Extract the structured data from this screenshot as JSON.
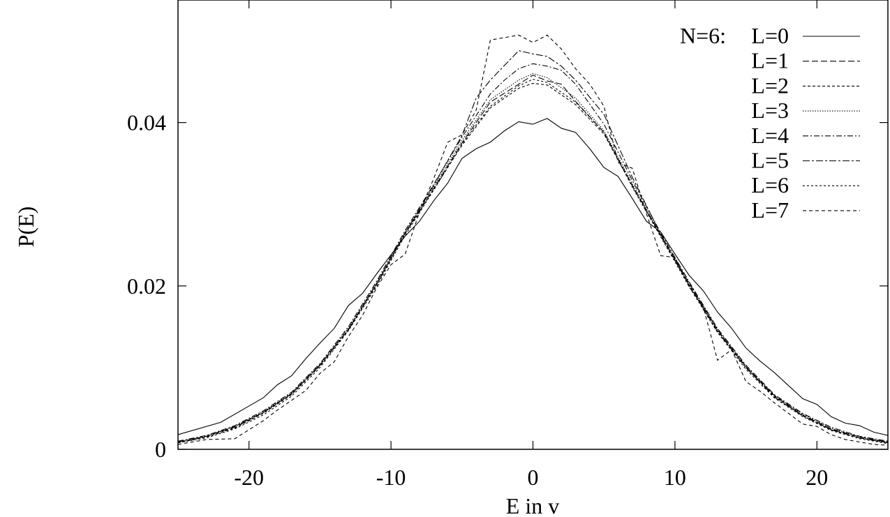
{
  "chart_data": {
    "type": "line",
    "title": "",
    "xlabel": "E in v",
    "ylabel": "P(E)",
    "xlim": [
      -25,
      25
    ],
    "ylim": [
      0,
      0.055
    ],
    "x_ticks": [
      -20,
      -10,
      0,
      10,
      20
    ],
    "x_tick_labels": [
      "-20",
      "-10",
      "0",
      "10",
      "20"
    ],
    "y_ticks": [
      0,
      0.02,
      0.04
    ],
    "y_tick_labels": [
      "0",
      "0.02",
      "0.04"
    ],
    "grid": false,
    "legend_position": "top-right",
    "legend_prefix": "N=6:",
    "line_color": "#000000",
    "series": [
      {
        "name": "L=0",
        "style": "solid",
        "x": [
          -25,
          -22,
          -20,
          -19,
          -18,
          -17,
          -16,
          -15,
          -14,
          -13,
          -12,
          -11,
          -10,
          -9,
          -8,
          -7,
          -6,
          -5,
          -4,
          -3,
          -2,
          -1,
          0,
          1,
          2,
          3,
          4,
          5,
          6,
          7,
          8,
          9,
          10,
          11,
          12,
          13,
          14,
          15,
          16,
          17,
          18,
          19,
          20,
          21,
          22,
          23,
          24,
          25
        ],
        "y": [
          0.0018,
          0.0033,
          0.0053,
          0.0063,
          0.0079,
          0.009,
          0.0111,
          0.013,
          0.0148,
          0.0176,
          0.0191,
          0.0215,
          0.0238,
          0.0261,
          0.0279,
          0.0304,
          0.0326,
          0.0356,
          0.0368,
          0.0376,
          0.039,
          0.0401,
          0.0398,
          0.0405,
          0.0393,
          0.0388,
          0.0368,
          0.0345,
          0.0334,
          0.0307,
          0.0279,
          0.0266,
          0.0239,
          0.0213,
          0.0194,
          0.0168,
          0.0148,
          0.0124,
          0.0108,
          0.0094,
          0.0078,
          0.0062,
          0.0055,
          0.004,
          0.0032,
          0.0029,
          0.0021,
          0.0017
        ]
      },
      {
        "name": "L=1",
        "style": "long-dash",
        "x": [
          -25,
          -23,
          -21,
          -19,
          -17,
          -15,
          -13,
          -11,
          -9,
          -7,
          -5,
          -3,
          -1,
          0,
          1,
          2,
          3,
          5,
          7,
          9,
          11,
          13,
          15,
          17,
          19,
          21,
          23,
          25
        ],
        "y": [
          0.0009,
          0.0016,
          0.0027,
          0.0045,
          0.0068,
          0.0103,
          0.0147,
          0.0203,
          0.0265,
          0.0319,
          0.0375,
          0.0425,
          0.0447,
          0.0458,
          0.0451,
          0.0447,
          0.0426,
          0.0388,
          0.0323,
          0.0262,
          0.0203,
          0.0146,
          0.0101,
          0.0066,
          0.0042,
          0.0025,
          0.0015,
          0.0009
        ]
      },
      {
        "name": "L=2",
        "style": "short-dash",
        "x": [
          -25,
          -23,
          -21,
          -19,
          -17,
          -15,
          -13,
          -11,
          -9,
          -7,
          -5,
          -3,
          -1,
          0,
          1,
          3,
          5,
          7,
          9,
          11,
          13,
          15,
          17,
          19,
          21,
          23,
          25
        ],
        "y": [
          0.0008,
          0.0015,
          0.0026,
          0.0044,
          0.0067,
          0.0102,
          0.0146,
          0.0202,
          0.0264,
          0.0318,
          0.0372,
          0.0418,
          0.0442,
          0.0448,
          0.0446,
          0.0422,
          0.0386,
          0.0322,
          0.0261,
          0.0201,
          0.0145,
          0.01,
          0.0065,
          0.0041,
          0.0024,
          0.0014,
          0.0008
        ]
      },
      {
        "name": "L=3",
        "style": "dotted",
        "x": [
          -25,
          -23,
          -21,
          -19,
          -17,
          -15,
          -13,
          -11,
          -9,
          -7,
          -5,
          -3,
          -1,
          0,
          1,
          3,
          5,
          7,
          9,
          11,
          13,
          15,
          17,
          19,
          21,
          23,
          25
        ],
        "y": [
          0.0009,
          0.0016,
          0.0028,
          0.0046,
          0.0069,
          0.0104,
          0.0148,
          0.0204,
          0.0266,
          0.0321,
          0.0378,
          0.0428,
          0.0452,
          0.046,
          0.0455,
          0.043,
          0.039,
          0.0325,
          0.0263,
          0.0204,
          0.0147,
          0.0102,
          0.0066,
          0.0043,
          0.0026,
          0.0015,
          0.0009
        ]
      },
      {
        "name": "L=4",
        "style": "dash-dot",
        "x": [
          -25,
          -23,
          -21,
          -19,
          -17,
          -15,
          -13,
          -11,
          -9,
          -7,
          -5,
          -3,
          -2,
          -1,
          0,
          1,
          2,
          3,
          5,
          7,
          9,
          11,
          13,
          15,
          17,
          19,
          21,
          23,
          25
        ],
        "y": [
          0.001,
          0.0017,
          0.0029,
          0.0047,
          0.007,
          0.0105,
          0.015,
          0.0206,
          0.0268,
          0.0324,
          0.0382,
          0.0435,
          0.0452,
          0.0466,
          0.0472,
          0.0469,
          0.0464,
          0.0447,
          0.0398,
          0.0329,
          0.0265,
          0.0205,
          0.0148,
          0.0103,
          0.0067,
          0.0044,
          0.0027,
          0.0016,
          0.001
        ]
      },
      {
        "name": "L=5",
        "style": "dash-dot-long",
        "x": [
          -25,
          -23,
          -21,
          -19,
          -17,
          -15,
          -13,
          -11,
          -9,
          -7,
          -5,
          -4,
          -3,
          -2,
          -1,
          0,
          1,
          2,
          3,
          5,
          7,
          9,
          11,
          13,
          15,
          17,
          19,
          21,
          23,
          25
        ],
        "y": [
          0.0009,
          0.0016,
          0.0028,
          0.0045,
          0.0068,
          0.0103,
          0.0147,
          0.0203,
          0.0265,
          0.0323,
          0.0384,
          0.043,
          0.0452,
          0.047,
          0.0488,
          0.0484,
          0.0481,
          0.0469,
          0.0452,
          0.041,
          0.0333,
          0.0263,
          0.0201,
          0.0144,
          0.01,
          0.0064,
          0.0041,
          0.0024,
          0.0014,
          0.0008
        ]
      },
      {
        "name": "L=6",
        "style": "short-dash-2",
        "x": [
          -25,
          -23,
          -21,
          -19,
          -17,
          -15,
          -13,
          -11,
          -9,
          -7,
          -5,
          -3,
          -1,
          0,
          1,
          3,
          5,
          7,
          9,
          11,
          13,
          15,
          17,
          19,
          21,
          23,
          25
        ],
        "y": [
          0.0008,
          0.0014,
          0.0025,
          0.0042,
          0.0065,
          0.01,
          0.0145,
          0.02,
          0.0262,
          0.0317,
          0.0374,
          0.042,
          0.0445,
          0.0453,
          0.0449,
          0.0425,
          0.0388,
          0.0321,
          0.026,
          0.0199,
          0.0143,
          0.0098,
          0.0063,
          0.004,
          0.0023,
          0.0013,
          0.0007
        ]
      },
      {
        "name": "L=7",
        "style": "sparse-dash",
        "x": [
          -25,
          -23,
          -21,
          -19,
          -18,
          -17,
          -16,
          -15,
          -14,
          -13,
          -12,
          -11,
          -10,
          -9,
          -8,
          -7,
          -6,
          -5,
          -4,
          -3,
          -2,
          -1,
          0,
          1,
          2,
          3,
          4,
          5,
          6,
          7,
          8,
          9,
          10,
          11,
          12,
          13,
          14,
          15,
          16,
          17,
          18,
          19,
          20,
          21,
          22,
          23,
          24,
          25
        ],
        "y": [
          0.0006,
          0.0012,
          0.0013,
          0.0035,
          0.0048,
          0.006,
          0.0072,
          0.0093,
          0.0107,
          0.0138,
          0.0164,
          0.0198,
          0.0226,
          0.0239,
          0.029,
          0.0331,
          0.0376,
          0.0385,
          0.0415,
          0.0501,
          0.0504,
          0.0507,
          0.0498,
          0.0507,
          0.049,
          0.0466,
          0.0447,
          0.042,
          0.0351,
          0.0344,
          0.0288,
          0.0237,
          0.0235,
          0.0199,
          0.0174,
          0.0109,
          0.0122,
          0.0083,
          0.0071,
          0.0057,
          0.0044,
          0.0031,
          0.0028,
          0.0018,
          0.0012,
          0.0009,
          0.0006,
          0.0005
        ]
      }
    ]
  }
}
